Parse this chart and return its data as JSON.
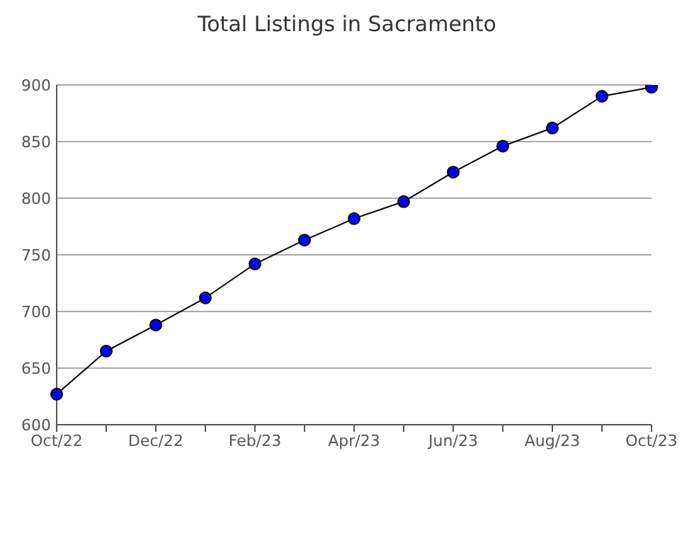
{
  "chart_data": {
    "type": "line",
    "title": "Total Listings in Sacramento",
    "categories": [
      "Oct/22",
      null,
      "Dec/22",
      null,
      "Feb/23",
      null,
      "Apr/23",
      null,
      "Jun/23",
      null,
      "Aug/23",
      null,
      "Oct/23"
    ],
    "series": [
      {
        "color": "#0000ff",
        "values": [
          627,
          665,
          688,
          712,
          742,
          763,
          782,
          797,
          823,
          846,
          862,
          890,
          898
        ]
      }
    ],
    "ylim": [
      600,
      900
    ],
    "yticks": [
      600,
      650,
      700,
      750,
      800,
      850,
      900
    ],
    "grid": "y",
    "legend": false,
    "marker": "circle",
    "line_style": "solid"
  }
}
